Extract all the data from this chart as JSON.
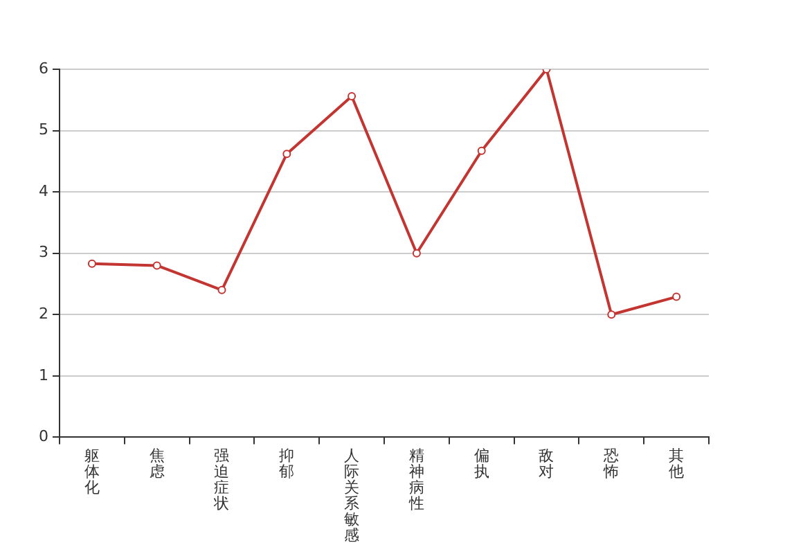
{
  "chart_data": {
    "type": "line",
    "categories": [
      "躯体化",
      "焦虑",
      "强迫症状",
      "抑郁",
      "人际关系敏感",
      "精神病性",
      "偏执",
      "敌对",
      "恐怖",
      "其他"
    ],
    "series": [
      {
        "color": "#c23531",
        "values": [
          2.83,
          2.8,
          2.4,
          4.62,
          5.56,
          3.0,
          4.67,
          6.0,
          2.0,
          2.29
        ]
      }
    ],
    "ylim": [
      0,
      6
    ],
    "yticks": [
      0,
      1,
      2,
      3,
      4,
      5,
      6
    ],
    "grid": "y",
    "legend": false,
    "marker": "circle",
    "line_style": "solid"
  }
}
